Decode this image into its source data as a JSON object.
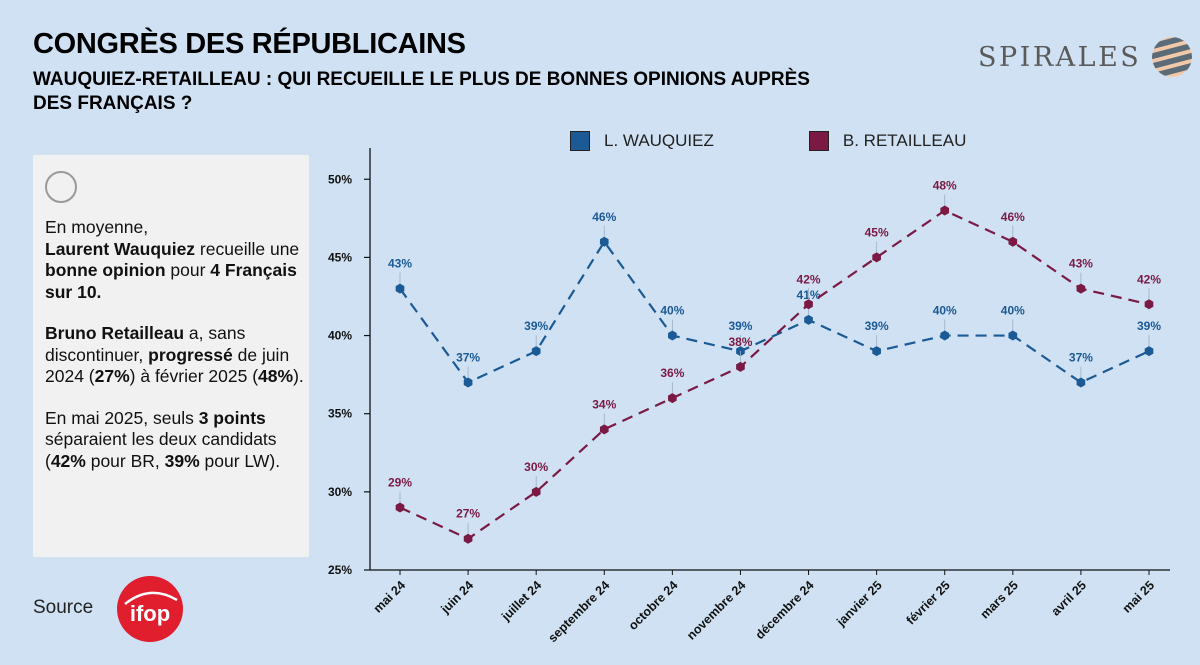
{
  "header": {
    "title": "CONGRÈS DES RÉPUBLICAINS",
    "subtitle": "WAUQUIEZ-RETAILLEAU : QUI RECUEILLE LE PLUS DE BONNES OPINIONS AUPRÈS DES FRANÇAIS ?"
  },
  "brand": {
    "name": "SPIRALES"
  },
  "note": {
    "p1": {
      "a": "En moyenne,",
      "b": "Laurent Wauquiez",
      "c": " recueille une ",
      "d": "bonne opinion",
      "e": " pour ",
      "f": "4 Français sur 10."
    },
    "p2": {
      "a": "Bruno Retailleau",
      "b": " a, sans discontinuer, ",
      "c": "progressé",
      "d": " de juin 2024 (",
      "e": "27%",
      "f": ") à février 2025 (",
      "g": "48%",
      "h": ")."
    },
    "p3": {
      "a": "En mai 2025, seuls ",
      "b": "3 points",
      "c": " séparaient les deux candidats (",
      "d": "42%",
      "e": " pour BR, ",
      "f": "39%",
      "g": " pour LW)."
    }
  },
  "source": {
    "label": "Source",
    "logo_text": "ifop"
  },
  "colors": {
    "background": "#cfe1f3",
    "wauquiez": "#1b5a94",
    "retailleau": "#7a1a44",
    "ifop": "#e01e2e"
  },
  "chart_data": {
    "type": "line",
    "categories": [
      "mai 24",
      "juin 24",
      "juillet 24",
      "septembre 24",
      "octobre 24",
      "novembre 24",
      "décembre 24",
      "janvier 25",
      "février 25",
      "mars 25",
      "avril 25",
      "mai 25"
    ],
    "series": [
      {
        "name": "L. WAUQUIEZ",
        "color": "#1b5a94",
        "values": [
          43,
          37,
          39,
          46,
          40,
          39,
          41,
          39,
          40,
          40,
          37,
          39
        ]
      },
      {
        "name": "B. RETAILLEAU",
        "color": "#7a1a44",
        "values": [
          29,
          27,
          30,
          34,
          36,
          38,
          42,
          45,
          48,
          46,
          43,
          42
        ]
      }
    ],
    "ylim": [
      25,
      52
    ],
    "yticks": [
      25,
      30,
      35,
      40,
      45,
      50
    ],
    "ytick_labels": [
      "25%",
      "30%",
      "35%",
      "40%",
      "45%",
      "50%"
    ],
    "line_style": "dashed",
    "legend_position": "top",
    "grid": false
  }
}
